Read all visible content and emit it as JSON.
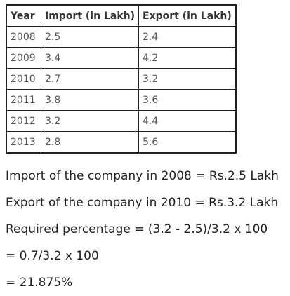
{
  "table": {
    "headers": [
      "Year",
      "Import (in Lakh)",
      "Export (in Lakh)"
    ],
    "rows": [
      [
        "2008",
        "2.5",
        "2.4"
      ],
      [
        "2009",
        "3.4",
        "4.2"
      ],
      [
        "2010",
        "2.7",
        "3.2"
      ],
      [
        "2011",
        "3.8",
        "3.6"
      ],
      [
        "2012",
        "3.2",
        "4.4"
      ],
      [
        "2013",
        "2.8",
        "5.6"
      ]
    ]
  },
  "explanation": {
    "lines": [
      "Import of the company in 2008 = Rs.2.5 Lakh",
      "Export of the company in 2010 = Rs.3.2 Lakh",
      "Required percentage = (3.2 - 2.5)/3.2 x 100",
      "= 0.7/3.2 x 100",
      "= 21.875%"
    ]
  }
}
